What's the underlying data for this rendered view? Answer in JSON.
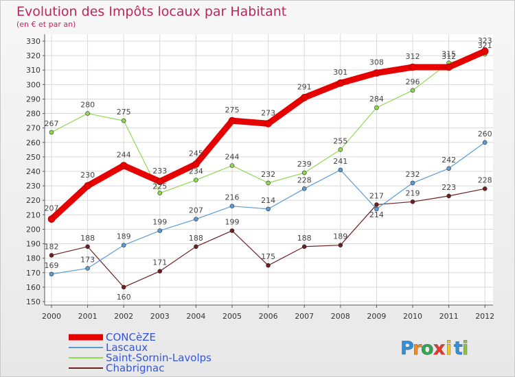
{
  "chart_data": {
    "type": "line",
    "title": "Evolution des Impôts locaux par Habitant",
    "subtitle": "(en € et par an)",
    "x": [
      "2000",
      "2001",
      "2002",
      "2003",
      "2004",
      "2005",
      "2006",
      "2007",
      "2008",
      "2009",
      "2010",
      "2011",
      "2012"
    ],
    "ylim": [
      150,
      330
    ],
    "yticks": [
      150,
      160,
      170,
      180,
      190,
      200,
      210,
      220,
      230,
      240,
      250,
      260,
      270,
      280,
      290,
      300,
      310,
      320,
      330
    ],
    "grid": true,
    "legend_position": "bottom-left",
    "series": [
      {
        "name": "CONCèZE",
        "color": "#e60000",
        "values": [
          207,
          230,
          244,
          233,
          245,
          275,
          273,
          291,
          301,
          308,
          312,
          312,
          323
        ]
      },
      {
        "name": "Lascaux",
        "color": "#5b9bd5",
        "values": [
          169,
          173,
          189,
          199,
          207,
          216,
          214,
          228,
          241,
          214,
          232,
          242,
          260
        ]
      },
      {
        "name": "Saint-Sornin-Lavolps",
        "color": "#8fd94f",
        "values": [
          267,
          280,
          275,
          225,
          234,
          244,
          232,
          239,
          255,
          284,
          296,
          315,
          321
        ]
      },
      {
        "name": "Chabrignac",
        "color": "#6b1f1f",
        "values": [
          182,
          188,
          160,
          171,
          188,
          199,
          175,
          188,
          189,
          217,
          219,
          223,
          228
        ]
      }
    ],
    "legend_text_color": "#3355dd"
  },
  "brand": {
    "letters": [
      "P",
      "r",
      "o",
      "x",
      "i",
      "t",
      "i"
    ],
    "colors": [
      "#2f8fd8",
      "#f28c1f",
      "#2fa84f",
      "#e83a2a",
      "#f2c81f",
      "#2f8fd8",
      "#8cc63f"
    ]
  }
}
